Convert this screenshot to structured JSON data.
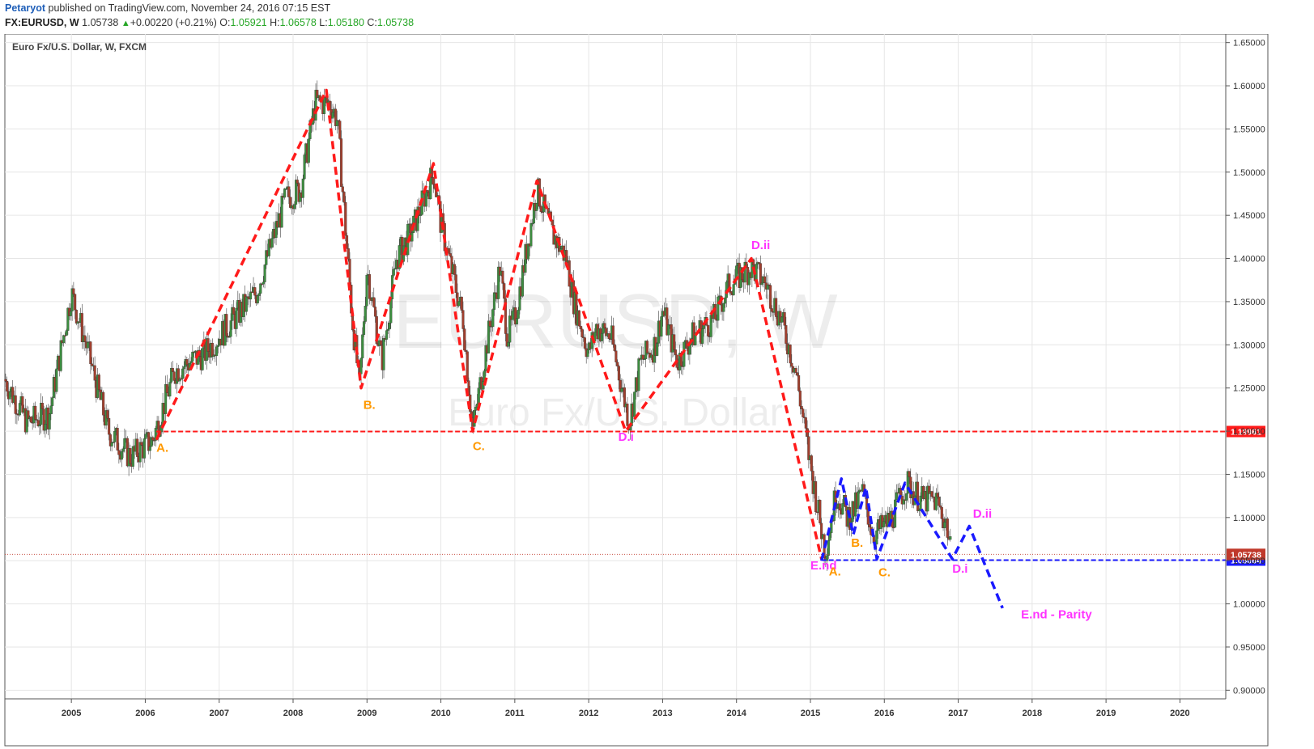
{
  "header": {
    "author": "Petaryot",
    "published_text": "published on TradingView.com, November 24, 2016 07:15 EST",
    "symbol": "FX:EURUSD, W",
    "last": "1.05738",
    "change_arrow": "▲",
    "change": "+0.00220 (+0.21%)",
    "o_label": "O:",
    "o_value": "1.05921",
    "h_label": "H:",
    "h_value": "1.06578",
    "l_label": "L:",
    "l_value": "1.05180",
    "c_label": "C:",
    "c_value": "1.05738"
  },
  "chart_data": {
    "type": "candlestick",
    "title": "Euro Fx/U.S. Dollar, W, FXCM",
    "watermark_symbol": "EURUSD, W",
    "watermark_name": "Euro Fx/U.S. Dollar",
    "xlim": [
      2004.1,
      2020.62
    ],
    "ylim": [
      0.89,
      1.66
    ],
    "x_ticks": [
      2005,
      2006,
      2007,
      2008,
      2009,
      2010,
      2011,
      2012,
      2013,
      2014,
      2015,
      2016,
      2017,
      2018,
      2019,
      2020
    ],
    "y_ticks": [
      0.9,
      0.95,
      1.0,
      1.05,
      1.1,
      1.15,
      1.2,
      1.25,
      1.3,
      1.35,
      1.4,
      1.45,
      1.5,
      1.55,
      1.6,
      1.65
    ],
    "grid": true,
    "colors": {
      "up": "#3d8c40",
      "down": "#a03f2e",
      "red": "#ff1a1a",
      "blue": "#1a1aff",
      "orange": "#ff9900",
      "magenta": "#ff33ff",
      "price": "#c0392b"
    },
    "price_path": [
      [
        2004.1,
        1.26
      ],
      [
        2004.4,
        1.21
      ],
      [
        2004.7,
        1.22
      ],
      [
        2005.0,
        1.36
      ],
      [
        2005.2,
        1.3
      ],
      [
        2005.5,
        1.2
      ],
      [
        2005.8,
        1.17
      ],
      [
        2006.1,
        1.19
      ],
      [
        2006.4,
        1.27
      ],
      [
        2006.8,
        1.29
      ],
      [
        2007.0,
        1.31
      ],
      [
        2007.5,
        1.36
      ],
      [
        2007.9,
        1.47
      ],
      [
        2008.1,
        1.48
      ],
      [
        2008.3,
        1.58
      ],
      [
        2008.5,
        1.58
      ],
      [
        2008.6,
        1.56
      ],
      [
        2008.8,
        1.33
      ],
      [
        2008.9,
        1.25
      ],
      [
        2009.0,
        1.39
      ],
      [
        2009.2,
        1.28
      ],
      [
        2009.4,
        1.4
      ],
      [
        2009.6,
        1.43
      ],
      [
        2009.9,
        1.5
      ],
      [
        2010.0,
        1.44
      ],
      [
        2010.3,
        1.33
      ],
      [
        2010.43,
        1.2
      ],
      [
        2010.6,
        1.29
      ],
      [
        2010.8,
        1.39
      ],
      [
        2010.9,
        1.31
      ],
      [
        2011.0,
        1.33
      ],
      [
        2011.3,
        1.48
      ],
      [
        2011.5,
        1.43
      ],
      [
        2011.7,
        1.4
      ],
      [
        2011.8,
        1.35
      ],
      [
        2012.0,
        1.29
      ],
      [
        2012.1,
        1.32
      ],
      [
        2012.3,
        1.31
      ],
      [
        2012.55,
        1.21
      ],
      [
        2012.7,
        1.28
      ],
      [
        2012.9,
        1.3
      ],
      [
        2013.0,
        1.34
      ],
      [
        2013.2,
        1.28
      ],
      [
        2013.4,
        1.31
      ],
      [
        2013.7,
        1.33
      ],
      [
        2013.9,
        1.37
      ],
      [
        2014.2,
        1.39
      ],
      [
        2014.4,
        1.37
      ],
      [
        2014.6,
        1.33
      ],
      [
        2014.8,
        1.27
      ],
      [
        2015.0,
        1.16
      ],
      [
        2015.2,
        1.06
      ],
      [
        2015.35,
        1.13
      ],
      [
        2015.5,
        1.1
      ],
      [
        2015.6,
        1.11
      ],
      [
        2015.7,
        1.13
      ],
      [
        2015.85,
        1.08
      ],
      [
        2016.0,
        1.09
      ],
      [
        2016.1,
        1.1
      ],
      [
        2016.3,
        1.14
      ],
      [
        2016.5,
        1.12
      ],
      [
        2016.7,
        1.12
      ],
      [
        2016.85,
        1.09
      ],
      [
        2016.9,
        1.057
      ]
    ],
    "series": [
      {
        "name": "",
        "color": "red",
        "style": "dashed",
        "points": [
          [
            2006.15,
            1.19
          ],
          [
            2008.45,
            1.595
          ],
          [
            2008.92,
            1.25
          ],
          [
            2009.9,
            1.51
          ],
          [
            2010.43,
            1.2
          ],
          [
            2011.3,
            1.49
          ],
          [
            2012.5,
            1.2
          ],
          [
            2014.2,
            1.4
          ],
          [
            2015.15,
            1.052
          ]
        ]
      },
      {
        "name": "",
        "color": "blue",
        "style": "dashed",
        "points": [
          [
            2015.15,
            1.05
          ],
          [
            2015.42,
            1.145
          ],
          [
            2015.58,
            1.08
          ],
          [
            2015.75,
            1.135
          ],
          [
            2015.9,
            1.052
          ],
          [
            2016.28,
            1.14
          ],
          [
            2016.92,
            1.052
          ],
          [
            2017.15,
            1.09
          ],
          [
            2017.6,
            0.995
          ]
        ]
      }
    ],
    "hlines": [
      {
        "value": 1.19961,
        "label": "1.19961",
        "color": "red",
        "x_start": 2006.15
      },
      {
        "value": 1.05064,
        "label": "1.05064",
        "color": "blue",
        "x_start": 2015.15
      },
      {
        "value": 1.05738,
        "label": "1.05738",
        "color": "price",
        "x_start": 2004.1
      }
    ],
    "annotations": [
      {
        "text": "A.",
        "x": 2006.15,
        "y": 1.176,
        "color": "orange"
      },
      {
        "text": "B.",
        "x": 2008.95,
        "y": 1.226,
        "color": "orange"
      },
      {
        "text": "C.",
        "x": 2010.43,
        "y": 1.178,
        "color": "orange"
      },
      {
        "text": "D.i",
        "x": 2012.4,
        "y": 1.189,
        "color": "magenta"
      },
      {
        "text": "D.ii",
        "x": 2014.2,
        "y": 1.411,
        "color": "magenta"
      },
      {
        "text": "E.nd",
        "x": 2015.0,
        "y": 1.04,
        "color": "magenta"
      },
      {
        "text": "A.",
        "x": 2015.25,
        "y": 1.033,
        "color": "orange"
      },
      {
        "text": "B.",
        "x": 2015.55,
        "y": 1.066,
        "color": "orange"
      },
      {
        "text": "C.",
        "x": 2015.92,
        "y": 1.032,
        "color": "orange"
      },
      {
        "text": "D.i",
        "x": 2016.92,
        "y": 1.036,
        "color": "magenta"
      },
      {
        "text": "D.ii",
        "x": 2017.2,
        "y": 1.1,
        "color": "magenta"
      },
      {
        "text": "E.nd - Parity",
        "x": 2017.85,
        "y": 0.983,
        "color": "magenta"
      }
    ]
  }
}
